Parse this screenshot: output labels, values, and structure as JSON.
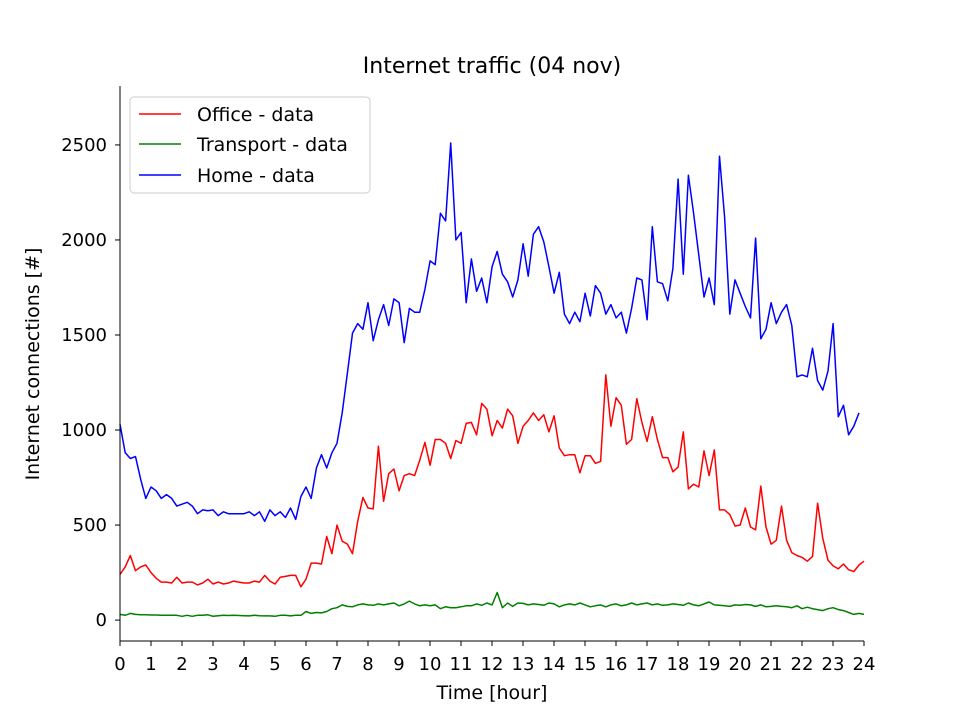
{
  "chart_data": {
    "type": "line",
    "title": "Internet traffic (04 nov)",
    "xlabel": "Time [hour]",
    "ylabel": "Internet connections [#]",
    "xlim": [
      0,
      24
    ],
    "ylim": [
      -110,
      2810
    ],
    "xticks": [
      0,
      1,
      2,
      3,
      4,
      5,
      6,
      7,
      8,
      9,
      10,
      11,
      12,
      13,
      14,
      15,
      16,
      17,
      18,
      19,
      20,
      21,
      22,
      23,
      24
    ],
    "yticks": [
      0,
      500,
      1000,
      1500,
      2000,
      2500
    ],
    "grid": false,
    "legend_position": "top-left",
    "x_step": 0.1667,
    "series": [
      {
        "name": "Office - data",
        "color": "#ff0000",
        "values": [
          240,
          280,
          340,
          260,
          280,
          290,
          250,
          220,
          200,
          200,
          195,
          225,
          195,
          200,
          200,
          185,
          195,
          215,
          190,
          200,
          190,
          195,
          205,
          200,
          195,
          195,
          205,
          200,
          235,
          205,
          190,
          225,
          230,
          235,
          235,
          175,
          215,
          300,
          300,
          295,
          440,
          350,
          500,
          415,
          400,
          350,
          520,
          645,
          590,
          585,
          915,
          625,
          770,
          795,
          680,
          760,
          770,
          760,
          840,
          935,
          815,
          950,
          950,
          930,
          850,
          945,
          930,
          1035,
          1040,
          975,
          1140,
          1110,
          970,
          1050,
          1010,
          1110,
          1075,
          930,
          1020,
          1050,
          1090,
          1050,
          1080,
          990,
          1075,
          905,
          865,
          870,
          870,
          775,
          865,
          865,
          825,
          835,
          1290,
          1020,
          1170,
          1130,
          925,
          950,
          1165,
          1040,
          940,
          1070,
          950,
          855,
          855,
          780,
          805,
          990,
          690,
          715,
          700,
          890,
          760,
          895,
          580,
          580,
          555,
          495,
          500,
          590,
          490,
          475,
          705,
          490,
          400,
          420,
          600,
          420,
          355,
          340,
          330,
          310,
          335,
          615,
          430,
          315,
          285,
          270,
          295,
          265,
          255,
          290,
          310
        ]
      },
      {
        "name": "Transport - data",
        "color": "#008000",
        "values": [
          30,
          25,
          35,
          30,
          28,
          28,
          27,
          27,
          26,
          26,
          25,
          25,
          20,
          25,
          20,
          25,
          25,
          28,
          20,
          23,
          25,
          24,
          25,
          24,
          23,
          22,
          25,
          23,
          22,
          22,
          20,
          25,
          25,
          22,
          25,
          25,
          45,
          35,
          40,
          38,
          45,
          60,
          65,
          80,
          72,
          70,
          80,
          85,
          80,
          78,
          85,
          80,
          85,
          90,
          75,
          85,
          100,
          85,
          75,
          80,
          75,
          80,
          60,
          70,
          65,
          65,
          70,
          75,
          75,
          85,
          78,
          90,
          80,
          145,
          65,
          90,
          72,
          90,
          88,
          80,
          85,
          82,
          78,
          90,
          85,
          70,
          80,
          85,
          80,
          90,
          80,
          70,
          75,
          80,
          70,
          80,
          85,
          75,
          80,
          90,
          80,
          85,
          90,
          80,
          85,
          78,
          80,
          85,
          82,
          78,
          90,
          80,
          75,
          85,
          95,
          80,
          78,
          75,
          72,
          80,
          78,
          82,
          80,
          72,
          80,
          70,
          72,
          75,
          72,
          70,
          65,
          75,
          60,
          68,
          60,
          55,
          50,
          60,
          65,
          55,
          50,
          40,
          30,
          35,
          30
        ]
      },
      {
        "name": "Home - data",
        "color": "#0000ff",
        "values": [
          1030,
          880,
          850,
          860,
          740,
          640,
          700,
          680,
          640,
          660,
          640,
          600,
          610,
          620,
          600,
          560,
          580,
          575,
          580,
          550,
          570,
          560,
          560,
          560,
          560,
          570,
          550,
          570,
          520,
          580,
          550,
          570,
          540,
          590,
          530,
          650,
          700,
          640,
          800,
          870,
          800,
          880,
          930,
          1090,
          1300,
          1510,
          1560,
          1530,
          1670,
          1470,
          1580,
          1660,
          1550,
          1690,
          1670,
          1460,
          1640,
          1620,
          1620,
          1740,
          1890,
          1870,
          2140,
          2100,
          2510,
          2000,
          2040,
          1670,
          1900,
          1730,
          1800,
          1670,
          1860,
          1940,
          1820,
          1780,
          1700,
          1790,
          1980,
          1810,
          2030,
          2070,
          1990,
          1860,
          1720,
          1830,
          1610,
          1560,
          1620,
          1570,
          1720,
          1600,
          1760,
          1720,
          1610,
          1660,
          1590,
          1620,
          1510,
          1640,
          1800,
          1790,
          1580,
          2070,
          1780,
          1770,
          1680,
          1850,
          2320,
          1820,
          2340,
          2140,
          1920,
          1700,
          1800,
          1660,
          2440,
          2120,
          1610,
          1790,
          1720,
          1650,
          1590,
          2010,
          1480,
          1530,
          1670,
          1560,
          1620,
          1660,
          1550,
          1280,
          1290,
          1280,
          1430,
          1260,
          1210,
          1310,
          1560,
          1070,
          1130,
          975,
          1020,
          1090
        ]
      }
    ]
  }
}
